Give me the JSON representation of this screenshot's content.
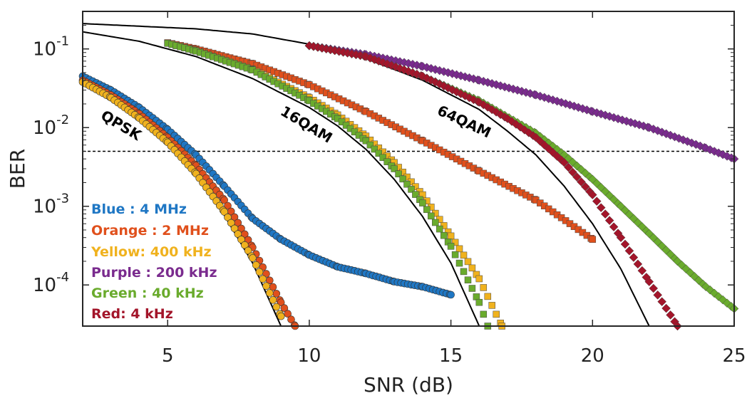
{
  "chart_data": {
    "type": "scatter",
    "title": "",
    "xlabel": "SNR (dB)",
    "ylabel": "BER",
    "xlim": [
      2,
      25
    ],
    "ylim": [
      3e-05,
      0.3
    ],
    "yscale": "log",
    "grid": false,
    "x_ticks": [
      "5",
      "10",
      "15",
      "20",
      "25"
    ],
    "y_ticks": [
      {
        "base": "10",
        "exp": "-1"
      },
      {
        "base": "10",
        "exp": "-2"
      },
      {
        "base": "10",
        "exp": "-3"
      },
      {
        "base": "10",
        "exp": "-4"
      }
    ],
    "threshold": 0.005,
    "theory_labels": [
      "QPSK",
      "16QAM",
      "64QAM"
    ],
    "theory_curves": [
      {
        "label": "QPSK",
        "points": [
          [
            2.0,
            0.0375
          ],
          [
            3.0,
            0.023
          ],
          [
            4.0,
            0.0125
          ],
          [
            5.0,
            0.006
          ],
          [
            6.0,
            0.0024
          ],
          [
            7.0,
            0.00077
          ],
          [
            8.0,
            0.00019
          ],
          [
            9.0,
            3e-05
          ]
        ]
      },
      {
        "label": "16QAM",
        "points": [
          [
            2.0,
            0.165
          ],
          [
            4.0,
            0.125
          ],
          [
            6.0,
            0.08
          ],
          [
            8.0,
            0.042
          ],
          [
            10.0,
            0.018
          ],
          [
            11.0,
            0.0105
          ],
          [
            12.0,
            0.0053
          ],
          [
            13.0,
            0.0022
          ],
          [
            14.0,
            0.00074
          ],
          [
            15.0,
            0.00019
          ],
          [
            16.0,
            3e-05
          ]
        ]
      },
      {
        "label": "64QAM",
        "points": [
          [
            2.0,
            0.21
          ],
          [
            6.0,
            0.18
          ],
          [
            8.0,
            0.155
          ],
          [
            10.0,
            0.115
          ],
          [
            12.0,
            0.075
          ],
          [
            14.0,
            0.04
          ],
          [
            16.0,
            0.017
          ],
          [
            17.0,
            0.009
          ],
          [
            18.0,
            0.0045
          ],
          [
            19.0,
            0.0018
          ],
          [
            20.0,
            0.0006
          ],
          [
            21.0,
            0.00016
          ],
          [
            22.0,
            3e-05
          ]
        ]
      }
    ],
    "series": [
      {
        "name": "Blue",
        "legend": "Blue : 4 MHz",
        "color": "#1f77c4",
        "marker": "circle",
        "points": [
          [
            2.0,
            0.045
          ],
          [
            3.0,
            0.03
          ],
          [
            4.0,
            0.018
          ],
          [
            5.0,
            0.0095
          ],
          [
            6.0,
            0.0045
          ],
          [
            7.0,
            0.0018
          ],
          [
            8.0,
            0.0007
          ],
          [
            9.0,
            0.00038
          ],
          [
            10.0,
            0.00024
          ],
          [
            11.0,
            0.00017
          ],
          [
            12.0,
            0.00014
          ],
          [
            13.0,
            0.00011
          ],
          [
            14.0,
            9.5e-05
          ],
          [
            15.0,
            7.5e-05
          ]
        ]
      },
      {
        "name": "Orange",
        "legend": "Orange : 2 MHz",
        "color": "#e0501c",
        "marker": "circle",
        "points": [
          [
            2.0,
            0.04
          ],
          [
            3.0,
            0.026
          ],
          [
            4.0,
            0.015
          ],
          [
            5.0,
            0.0075
          ],
          [
            6.0,
            0.0033
          ],
          [
            7.0,
            0.0012
          ],
          [
            8.0,
            0.0003
          ],
          [
            9.0,
            6e-05
          ],
          [
            9.5,
            3e-05
          ]
        ]
      },
      {
        "name": "Yellow",
        "legend": "Yellow: 400 kHz",
        "color": "#f0b21e",
        "marker": "circle",
        "points": [
          [
            2.0,
            0.038
          ],
          [
            3.0,
            0.024
          ],
          [
            4.0,
            0.0132
          ],
          [
            5.0,
            0.0065
          ],
          [
            6.0,
            0.0026
          ],
          [
            7.0,
            0.00085
          ],
          [
            8.0,
            0.00022
          ],
          [
            9.0,
            4e-05
          ]
        ]
      },
      {
        "name": "Orange",
        "legend": "",
        "color": "#e0501c",
        "marker": "square",
        "points": [
          [
            5.0,
            0.12
          ],
          [
            6.0,
            0.1
          ],
          [
            8.0,
            0.065
          ],
          [
            10.0,
            0.035
          ],
          [
            12.0,
            0.016
          ],
          [
            14.0,
            0.0068
          ],
          [
            16.0,
            0.0028
          ],
          [
            18.0,
            0.0012
          ],
          [
            20.0,
            0.00038
          ]
        ]
      },
      {
        "name": "Yellow",
        "legend": "",
        "color": "#f0b21e",
        "marker": "square",
        "points": [
          [
            5.0,
            0.118
          ],
          [
            6.0,
            0.095
          ],
          [
            8.0,
            0.055
          ],
          [
            10.0,
            0.024
          ],
          [
            11.0,
            0.0145
          ],
          [
            12.0,
            0.0078
          ],
          [
            13.0,
            0.0036
          ],
          [
            14.0,
            0.0014
          ],
          [
            15.0,
            0.00042
          ],
          [
            16.0,
            0.00012
          ],
          [
            16.8,
            3e-05
          ]
        ]
      },
      {
        "name": "Green",
        "legend": "",
        "color": "#6aab2d",
        "marker": "square",
        "points": [
          [
            5.0,
            0.118
          ],
          [
            6.0,
            0.094
          ],
          [
            8.0,
            0.054
          ],
          [
            10.0,
            0.022
          ],
          [
            11.0,
            0.013
          ],
          [
            12.0,
            0.0068
          ],
          [
            13.0,
            0.003
          ],
          [
            14.0,
            0.0011
          ],
          [
            15.0,
            0.00031
          ],
          [
            16.0,
            6e-05
          ],
          [
            16.3,
            3e-05
          ]
        ]
      },
      {
        "name": "Purple",
        "legend": "Purple : 200 kHz",
        "color": "#7a2b8e",
        "marker": "diamond",
        "points": [
          [
            10.0,
            0.11
          ],
          [
            12.0,
            0.085
          ],
          [
            14.0,
            0.06
          ],
          [
            16.0,
            0.04
          ],
          [
            18.0,
            0.026
          ],
          [
            20.0,
            0.016
          ],
          [
            22.0,
            0.01
          ],
          [
            24.0,
            0.0055
          ],
          [
            25.0,
            0.004
          ]
        ]
      },
      {
        "name": "Green",
        "legend": "Green : 40 kHz",
        "color": "#6aab2d",
        "marker": "diamond",
        "points": [
          [
            10.0,
            0.11
          ],
          [
            12.0,
            0.08
          ],
          [
            14.0,
            0.045
          ],
          [
            16.0,
            0.022
          ],
          [
            18.0,
            0.0085
          ],
          [
            19.0,
            0.0045
          ],
          [
            20.0,
            0.0022
          ],
          [
            21.0,
            0.001
          ],
          [
            22.0,
            0.00045
          ],
          [
            23.0,
            0.0002
          ],
          [
            24.0,
            9.5e-05
          ],
          [
            25.0,
            5e-05
          ]
        ]
      },
      {
        "name": "Red",
        "legend": "Red: 4 kHz",
        "color": "#a3152a",
        "marker": "diamond",
        "points": [
          [
            10.0,
            0.11
          ],
          [
            12.0,
            0.08
          ],
          [
            14.0,
            0.045
          ],
          [
            16.0,
            0.021
          ],
          [
            17.0,
            0.013
          ],
          [
            18.0,
            0.0075
          ],
          [
            19.0,
            0.0036
          ],
          [
            20.0,
            0.0014
          ],
          [
            21.0,
            0.0004
          ],
          [
            22.0,
            0.00011
          ],
          [
            23.0,
            3e-05
          ]
        ]
      }
    ]
  }
}
